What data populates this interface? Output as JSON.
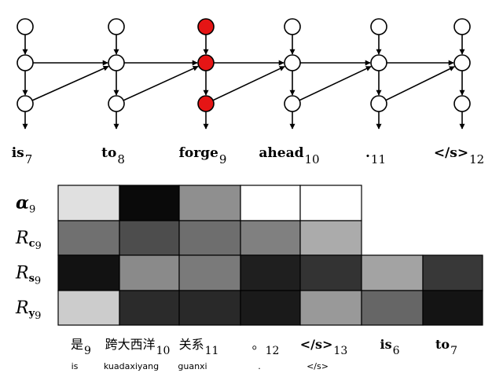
{
  "colors": {
    "highlight": "#e51515",
    "node_fill": "#ffffff",
    "stroke": "#000000"
  },
  "decoder": {
    "highlight_index": 2,
    "tokens": [
      {
        "word": "is",
        "sub": "7"
      },
      {
        "word": "to",
        "sub": "8"
      },
      {
        "word": "forge",
        "sub": "9"
      },
      {
        "word": "ahead",
        "sub": "10"
      },
      {
        "word": ".",
        "sub": "11"
      },
      {
        "word": "</s>",
        "sub": "12"
      }
    ]
  },
  "heatmap": {
    "rows": [
      {
        "symbol": "α",
        "bold_symbol": "",
        "sub": "9",
        "values": [
          0.88,
          0.04,
          0.56,
          1.0,
          1.0,
          null,
          null
        ]
      },
      {
        "symbol": "R",
        "bold_symbol": "c",
        "sub": "9",
        "values": [
          0.44,
          0.3,
          0.43,
          0.5,
          0.67,
          null,
          null
        ]
      },
      {
        "symbol": "R",
        "bold_symbol": "s",
        "sub": "9",
        "values": [
          0.07,
          0.54,
          0.48,
          0.12,
          0.2,
          0.64,
          0.22
        ]
      },
      {
        "symbol": "R",
        "bold_symbol": "y",
        "sub": "9",
        "values": [
          0.8,
          0.17,
          0.16,
          0.1,
          0.6,
          0.4,
          0.08
        ]
      }
    ],
    "columns": [
      {
        "word": "是",
        "sub": "9",
        "pinyin": "is"
      },
      {
        "word": "跨大西洋",
        "sub": "10",
        "pinyin": "kuadaxiyang"
      },
      {
        "word": "关系",
        "sub": "11",
        "pinyin": "guanxi"
      },
      {
        "word": "。",
        "sub": "12",
        "pinyin": "."
      },
      {
        "word": "</s>",
        "sub": "13",
        "pinyin": "</s>"
      },
      {
        "word": "is",
        "sub": "6",
        "pinyin": ""
      },
      {
        "word": "to",
        "sub": "7",
        "pinyin": ""
      }
    ]
  }
}
